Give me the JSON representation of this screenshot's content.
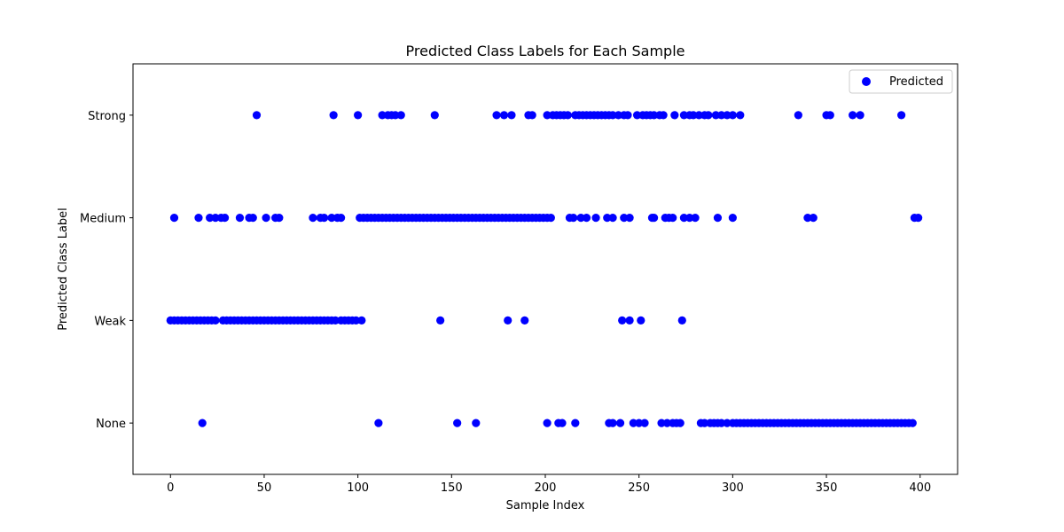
{
  "chart_data": {
    "type": "scatter",
    "title": "Predicted Class Labels for Each Sample",
    "xlabel": "Sample Index",
    "ylabel": "Predicted Class Label",
    "xlim": [
      -20,
      420
    ],
    "ylim": [
      -0.5,
      3.5
    ],
    "x_ticks": [
      0,
      50,
      100,
      150,
      200,
      250,
      300,
      350,
      400
    ],
    "categories": [
      "None",
      "Weak",
      "Medium",
      "Strong"
    ],
    "legend": {
      "position": "top-right",
      "entries": [
        "Predicted"
      ]
    },
    "grid": false,
    "colors": {
      "marker": "#0000ff",
      "axis": "#000000",
      "legend_border": "#cccccc"
    },
    "series": [
      {
        "name": "Predicted",
        "points": [
          [
            46,
            3
          ],
          [
            87,
            3
          ],
          [
            100,
            3
          ],
          [
            113,
            3
          ],
          [
            116,
            3
          ],
          [
            118,
            3
          ],
          [
            120,
            3
          ],
          [
            123,
            3
          ],
          [
            141,
            3
          ],
          [
            174,
            3
          ],
          [
            178,
            3
          ],
          [
            182,
            3
          ],
          [
            191,
            3
          ],
          [
            193,
            3
          ],
          [
            201,
            3
          ],
          [
            204,
            3
          ],
          [
            206,
            3
          ],
          [
            208,
            3
          ],
          [
            210,
            3
          ],
          [
            212,
            3
          ],
          [
            216,
            3
          ],
          [
            218,
            3
          ],
          [
            220,
            3
          ],
          [
            222,
            3
          ],
          [
            224,
            3
          ],
          [
            226,
            3
          ],
          [
            228,
            3
          ],
          [
            230,
            3
          ],
          [
            232,
            3
          ],
          [
            234,
            3
          ],
          [
            236,
            3
          ],
          [
            239,
            3
          ],
          [
            242,
            3
          ],
          [
            244,
            3
          ],
          [
            249,
            3
          ],
          [
            252,
            3
          ],
          [
            254,
            3
          ],
          [
            256,
            3
          ],
          [
            258,
            3
          ],
          [
            261,
            3
          ],
          [
            263,
            3
          ],
          [
            269,
            3
          ],
          [
            274,
            3
          ],
          [
            277,
            3
          ],
          [
            279,
            3
          ],
          [
            282,
            3
          ],
          [
            285,
            3
          ],
          [
            287,
            3
          ],
          [
            291,
            3
          ],
          [
            294,
            3
          ],
          [
            297,
            3
          ],
          [
            300,
            3
          ],
          [
            304,
            3
          ],
          [
            335,
            3
          ],
          [
            350,
            3
          ],
          [
            352,
            3
          ],
          [
            364,
            3
          ],
          [
            368,
            3
          ],
          [
            390,
            3
          ],
          [
            2,
            2
          ],
          [
            15,
            2
          ],
          [
            21,
            2
          ],
          [
            24,
            2
          ],
          [
            27,
            2
          ],
          [
            29,
            2
          ],
          [
            37,
            2
          ],
          [
            42,
            2
          ],
          [
            44,
            2
          ],
          [
            51,
            2
          ],
          [
            56,
            2
          ],
          [
            58,
            2
          ],
          [
            76,
            2
          ],
          [
            80,
            2
          ],
          [
            82,
            2
          ],
          [
            86,
            2
          ],
          [
            89,
            2
          ],
          [
            91,
            2
          ],
          [
            101,
            2
          ],
          [
            103,
            2
          ],
          [
            105,
            2
          ],
          [
            107,
            2
          ],
          [
            109,
            2
          ],
          [
            111,
            2
          ],
          [
            113,
            2
          ],
          [
            115,
            2
          ],
          [
            117,
            2
          ],
          [
            119,
            2
          ],
          [
            121,
            2
          ],
          [
            123,
            2
          ],
          [
            125,
            2
          ],
          [
            127,
            2
          ],
          [
            129,
            2
          ],
          [
            131,
            2
          ],
          [
            133,
            2
          ],
          [
            135,
            2
          ],
          [
            137,
            2
          ],
          [
            139,
            2
          ],
          [
            141,
            2
          ],
          [
            143,
            2
          ],
          [
            145,
            2
          ],
          [
            147,
            2
          ],
          [
            149,
            2
          ],
          [
            151,
            2
          ],
          [
            153,
            2
          ],
          [
            155,
            2
          ],
          [
            157,
            2
          ],
          [
            159,
            2
          ],
          [
            161,
            2
          ],
          [
            163,
            2
          ],
          [
            165,
            2
          ],
          [
            167,
            2
          ],
          [
            169,
            2
          ],
          [
            171,
            2
          ],
          [
            173,
            2
          ],
          [
            175,
            2
          ],
          [
            177,
            2
          ],
          [
            179,
            2
          ],
          [
            181,
            2
          ],
          [
            183,
            2
          ],
          [
            185,
            2
          ],
          [
            187,
            2
          ],
          [
            189,
            2
          ],
          [
            191,
            2
          ],
          [
            193,
            2
          ],
          [
            195,
            2
          ],
          [
            197,
            2
          ],
          [
            199,
            2
          ],
          [
            201,
            2
          ],
          [
            203,
            2
          ],
          [
            213,
            2
          ],
          [
            215,
            2
          ],
          [
            219,
            2
          ],
          [
            222,
            2
          ],
          [
            227,
            2
          ],
          [
            233,
            2
          ],
          [
            236,
            2
          ],
          [
            242,
            2
          ],
          [
            245,
            2
          ],
          [
            257,
            2
          ],
          [
            258,
            2
          ],
          [
            264,
            2
          ],
          [
            266,
            2
          ],
          [
            268,
            2
          ],
          [
            274,
            2
          ],
          [
            277,
            2
          ],
          [
            280,
            2
          ],
          [
            292,
            2
          ],
          [
            300,
            2
          ],
          [
            340,
            2
          ],
          [
            343,
            2
          ],
          [
            397,
            2
          ],
          [
            399,
            2
          ],
          [
            0,
            1
          ],
          [
            2,
            1
          ],
          [
            4,
            1
          ],
          [
            6,
            1
          ],
          [
            8,
            1
          ],
          [
            10,
            1
          ],
          [
            12,
            1
          ],
          [
            14,
            1
          ],
          [
            16,
            1
          ],
          [
            18,
            1
          ],
          [
            20,
            1
          ],
          [
            22,
            1
          ],
          [
            24,
            1
          ],
          [
            28,
            1
          ],
          [
            30,
            1
          ],
          [
            32,
            1
          ],
          [
            34,
            1
          ],
          [
            36,
            1
          ],
          [
            38,
            1
          ],
          [
            40,
            1
          ],
          [
            42,
            1
          ],
          [
            44,
            1
          ],
          [
            46,
            1
          ],
          [
            48,
            1
          ],
          [
            50,
            1
          ],
          [
            52,
            1
          ],
          [
            54,
            1
          ],
          [
            56,
            1
          ],
          [
            58,
            1
          ],
          [
            60,
            1
          ],
          [
            62,
            1
          ],
          [
            64,
            1
          ],
          [
            66,
            1
          ],
          [
            68,
            1
          ],
          [
            70,
            1
          ],
          [
            72,
            1
          ],
          [
            74,
            1
          ],
          [
            76,
            1
          ],
          [
            78,
            1
          ],
          [
            80,
            1
          ],
          [
            82,
            1
          ],
          [
            84,
            1
          ],
          [
            86,
            1
          ],
          [
            88,
            1
          ],
          [
            91,
            1
          ],
          [
            93,
            1
          ],
          [
            95,
            1
          ],
          [
            97,
            1
          ],
          [
            99,
            1
          ],
          [
            102,
            1
          ],
          [
            144,
            1
          ],
          [
            180,
            1
          ],
          [
            189,
            1
          ],
          [
            241,
            1
          ],
          [
            245,
            1
          ],
          [
            251,
            1
          ],
          [
            273,
            1
          ],
          [
            17,
            0
          ],
          [
            111,
            0
          ],
          [
            153,
            0
          ],
          [
            163,
            0
          ],
          [
            201,
            0
          ],
          [
            207,
            0
          ],
          [
            209,
            0
          ],
          [
            216,
            0
          ],
          [
            234,
            0
          ],
          [
            236,
            0
          ],
          [
            240,
            0
          ],
          [
            247,
            0
          ],
          [
            250,
            0
          ],
          [
            253,
            0
          ],
          [
            262,
            0
          ],
          [
            265,
            0
          ],
          [
            268,
            0
          ],
          [
            270,
            0
          ],
          [
            272,
            0
          ],
          [
            283,
            0
          ],
          [
            285,
            0
          ],
          [
            288,
            0
          ],
          [
            290,
            0
          ],
          [
            292,
            0
          ],
          [
            294,
            0
          ],
          [
            297,
            0
          ],
          [
            300,
            0
          ],
          [
            302,
            0
          ],
          [
            304,
            0
          ],
          [
            306,
            0
          ],
          [
            308,
            0
          ],
          [
            310,
            0
          ],
          [
            312,
            0
          ],
          [
            314,
            0
          ],
          [
            316,
            0
          ],
          [
            318,
            0
          ],
          [
            320,
            0
          ],
          [
            322,
            0
          ],
          [
            324,
            0
          ],
          [
            326,
            0
          ],
          [
            328,
            0
          ],
          [
            330,
            0
          ],
          [
            332,
            0
          ],
          [
            334,
            0
          ],
          [
            336,
            0
          ],
          [
            338,
            0
          ],
          [
            340,
            0
          ],
          [
            342,
            0
          ],
          [
            344,
            0
          ],
          [
            346,
            0
          ],
          [
            348,
            0
          ],
          [
            350,
            0
          ],
          [
            352,
            0
          ],
          [
            354,
            0
          ],
          [
            356,
            0
          ],
          [
            358,
            0
          ],
          [
            360,
            0
          ],
          [
            362,
            0
          ],
          [
            364,
            0
          ],
          [
            366,
            0
          ],
          [
            368,
            0
          ],
          [
            370,
            0
          ],
          [
            372,
            0
          ],
          [
            374,
            0
          ],
          [
            376,
            0
          ],
          [
            378,
            0
          ],
          [
            380,
            0
          ],
          [
            382,
            0
          ],
          [
            384,
            0
          ],
          [
            386,
            0
          ],
          [
            388,
            0
          ],
          [
            390,
            0
          ],
          [
            392,
            0
          ],
          [
            394,
            0
          ],
          [
            396,
            0
          ]
        ]
      }
    ]
  }
}
